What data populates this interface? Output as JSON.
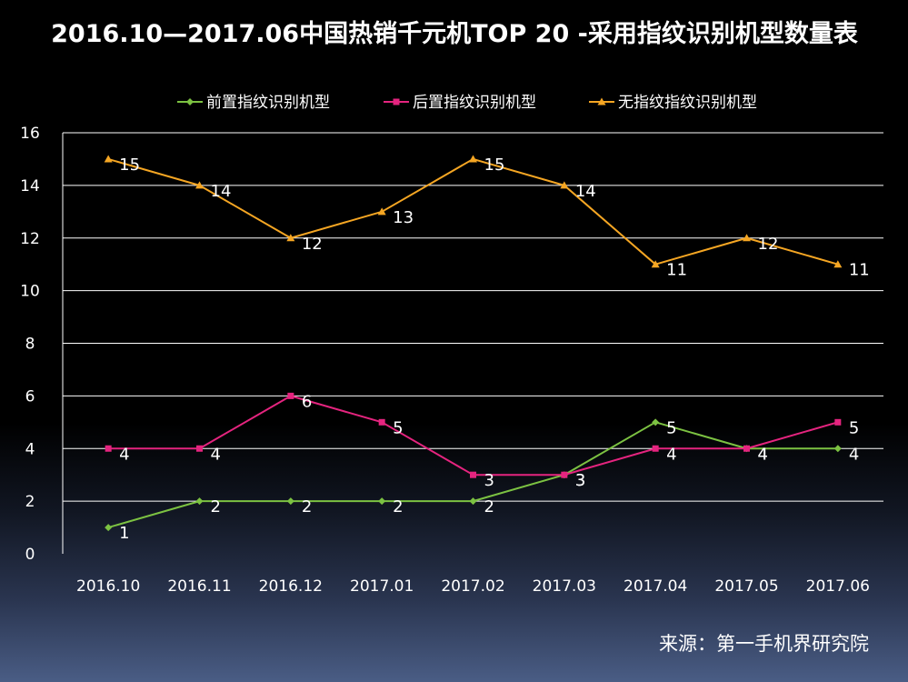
{
  "chart_data": {
    "type": "line",
    "title": "2016.10—2017.06中国热销千元机TOP 20 -采用指纹识别机型数量表",
    "categories": [
      "2016.10",
      "2016.11",
      "2016.12",
      "2017.01",
      "2017.02",
      "2017.03",
      "2017.04",
      "2017.05",
      "2017.06"
    ],
    "ylim": [
      0,
      16
    ],
    "yticks": [
      0,
      2,
      4,
      6,
      8,
      10,
      12,
      14,
      16
    ],
    "grid": true,
    "legend_position": "top",
    "series": [
      {
        "name": "前置指纹识别机型",
        "color": "#7cc242",
        "marker": "diamond",
        "values": [
          1,
          2,
          2,
          2,
          2,
          3,
          5,
          4,
          4
        ]
      },
      {
        "name": "后置指纹识别机型",
        "color": "#e5247f",
        "marker": "square",
        "values": [
          4,
          4,
          6,
          5,
          3,
          3,
          4,
          4,
          5
        ]
      },
      {
        "name": "无指纹指纹识别机型",
        "color": "#f5a623",
        "marker": "triangle",
        "values": [
          15,
          14,
          12,
          13,
          15,
          14,
          11,
          12,
          11
        ]
      }
    ],
    "source": "来源：第一手机界研究院"
  }
}
